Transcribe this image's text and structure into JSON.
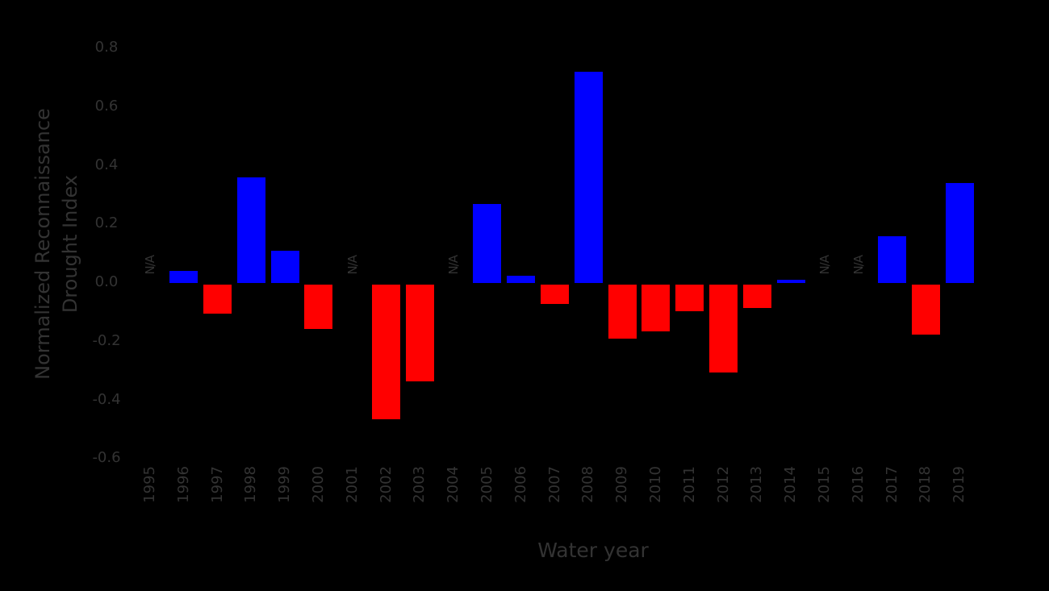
{
  "chart_data": {
    "type": "bar",
    "title": "",
    "xlabel": "Water year",
    "ylabel": "Normalized Reconnaissance Drought Index",
    "ylabel_lines": [
      "Normalized Reconnaissance",
      "Drought Index"
    ],
    "ylim": [
      -0.6,
      0.8
    ],
    "yticks": [
      "0.8",
      "0.6",
      "0.4",
      "0.2",
      "0.0",
      "-0.2",
      "-0.4",
      "-0.6"
    ],
    "grid": false,
    "legend": null,
    "categories": [
      "1995",
      "1996",
      "1997",
      "1998",
      "1999",
      "2000",
      "2001",
      "2002",
      "2003",
      "2004",
      "2005",
      "2006",
      "2007",
      "2008",
      "2009",
      "2010",
      "2011",
      "2012",
      "2013",
      "2014",
      "2015",
      "2016",
      "2017",
      "2018",
      "2019"
    ],
    "values": [
      null,
      0.04,
      -0.1,
      0.36,
      0.11,
      -0.15,
      null,
      -0.46,
      -0.33,
      null,
      0.27,
      0.025,
      -0.065,
      0.72,
      -0.185,
      -0.16,
      -0.09,
      -0.3,
      -0.08,
      0.01,
      null,
      null,
      0.16,
      -0.17,
      0.34
    ],
    "missing_label": "N/A",
    "colors": {
      "positive": "#0000ff",
      "negative": "#ff0000",
      "background": "#000000",
      "text": "#333333"
    }
  }
}
